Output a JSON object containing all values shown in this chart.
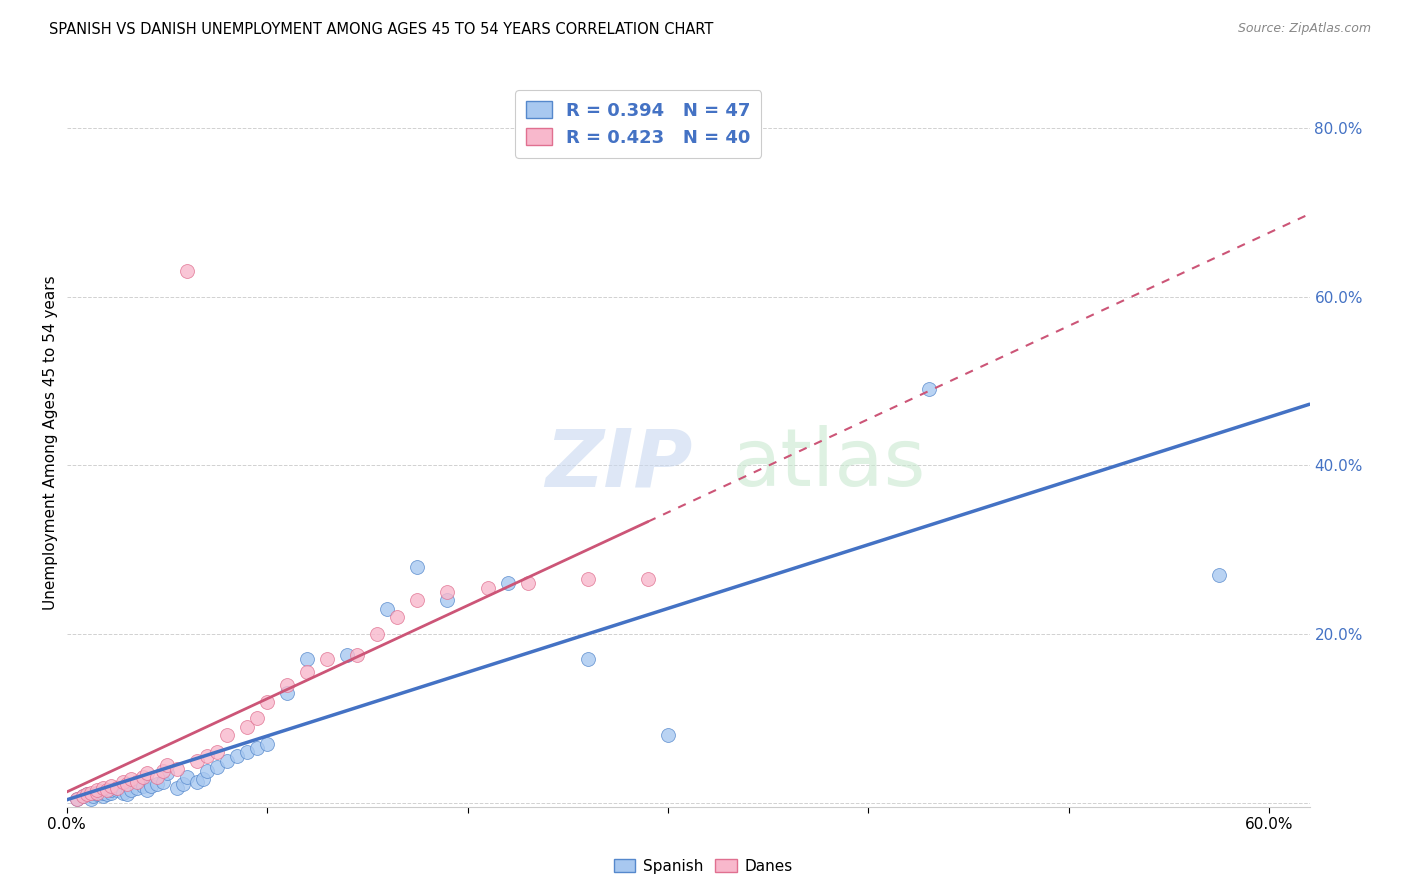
{
  "title": "SPANISH VS DANISH UNEMPLOYMENT AMONG AGES 45 TO 54 YEARS CORRELATION CHART",
  "source": "Source: ZipAtlas.com",
  "ylabel": "Unemployment Among Ages 45 to 54 years",
  "xlim": [
    0.0,
    0.62
  ],
  "ylim": [
    -0.005,
    0.86
  ],
  "xtick_positions": [
    0.0,
    0.1,
    0.2,
    0.3,
    0.4,
    0.5,
    0.6
  ],
  "xtick_labels": [
    "0.0%",
    "",
    "",
    "",
    "",
    "",
    "60.0%"
  ],
  "ytick_positions": [
    0.0,
    0.2,
    0.4,
    0.6,
    0.8
  ],
  "ytick_labels": [
    "",
    "20.0%",
    "40.0%",
    "60.0%",
    "80.0%"
  ],
  "spanish_color": "#a8c8f0",
  "danish_color": "#f8b8cc",
  "spanish_edge_color": "#5588cc",
  "danish_edge_color": "#e07090",
  "spanish_line_color": "#4472c4",
  "danish_line_color": "#cc5577",
  "spanish_x": [
    0.005,
    0.008,
    0.01,
    0.012,
    0.013,
    0.015,
    0.015,
    0.018,
    0.018,
    0.02,
    0.022,
    0.022,
    0.025,
    0.025,
    0.028,
    0.03,
    0.032,
    0.035,
    0.038,
    0.04,
    0.042,
    0.045,
    0.048,
    0.05,
    0.055,
    0.058,
    0.06,
    0.065,
    0.068,
    0.07,
    0.075,
    0.08,
    0.085,
    0.09,
    0.095,
    0.1,
    0.11,
    0.12,
    0.14,
    0.16,
    0.175,
    0.19,
    0.22,
    0.26,
    0.3,
    0.43,
    0.575
  ],
  "spanish_y": [
    0.005,
    0.008,
    0.01,
    0.005,
    0.008,
    0.01,
    0.012,
    0.008,
    0.012,
    0.01,
    0.012,
    0.015,
    0.015,
    0.018,
    0.012,
    0.01,
    0.015,
    0.018,
    0.02,
    0.015,
    0.02,
    0.022,
    0.025,
    0.035,
    0.018,
    0.022,
    0.03,
    0.025,
    0.028,
    0.038,
    0.042,
    0.05,
    0.055,
    0.06,
    0.065,
    0.07,
    0.13,
    0.17,
    0.175,
    0.23,
    0.28,
    0.24,
    0.26,
    0.17,
    0.08,
    0.49,
    0.27
  ],
  "danish_x": [
    0.005,
    0.008,
    0.01,
    0.012,
    0.015,
    0.015,
    0.018,
    0.02,
    0.022,
    0.025,
    0.028,
    0.03,
    0.032,
    0.035,
    0.038,
    0.04,
    0.045,
    0.048,
    0.05,
    0.055,
    0.06,
    0.065,
    0.07,
    0.075,
    0.08,
    0.09,
    0.095,
    0.1,
    0.11,
    0.12,
    0.13,
    0.145,
    0.155,
    0.165,
    0.175,
    0.19,
    0.21,
    0.23,
    0.26,
    0.29
  ],
  "danish_y": [
    0.005,
    0.008,
    0.01,
    0.012,
    0.012,
    0.015,
    0.018,
    0.015,
    0.02,
    0.018,
    0.025,
    0.022,
    0.028,
    0.025,
    0.03,
    0.035,
    0.03,
    0.038,
    0.045,
    0.04,
    0.63,
    0.05,
    0.055,
    0.06,
    0.08,
    0.09,
    0.1,
    0.12,
    0.14,
    0.155,
    0.17,
    0.175,
    0.2,
    0.22,
    0.24,
    0.25,
    0.255,
    0.26,
    0.265,
    0.265
  ]
}
